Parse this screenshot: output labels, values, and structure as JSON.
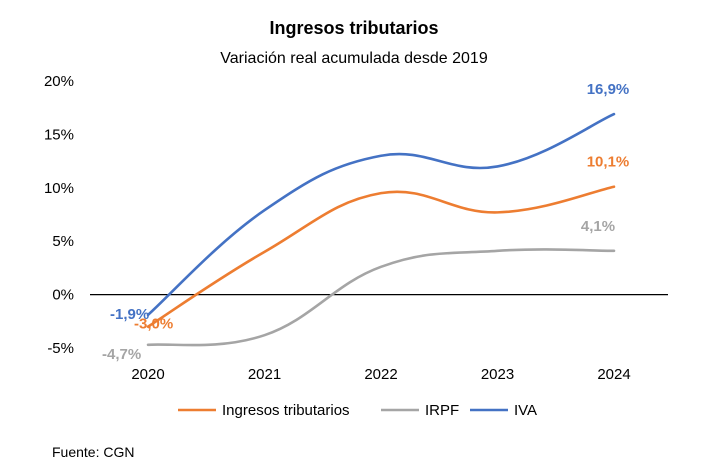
{
  "chart_data": {
    "type": "line",
    "title": "Ingresos tributarios",
    "subtitle": "Variación real acumulada desde 2019",
    "categories": [
      "2020",
      "2021",
      "2022",
      "2023",
      "2024"
    ],
    "y_ticks": [
      "20%",
      "15%",
      "10%",
      "5%",
      "0%",
      "-5%"
    ],
    "ylim": [
      -5,
      20
    ],
    "grid": false,
    "legend_position": "bottom",
    "series": [
      {
        "name": "Ingresos tributarios",
        "color": "#ED7D31",
        "values": [
          -3.0,
          4.0,
          9.5,
          7.7,
          10.1
        ],
        "labels": {
          "0": "-3,0%",
          "4": "10,1%"
        }
      },
      {
        "name": "IRPF",
        "color": "#A5A5A5",
        "values": [
          -4.7,
          -3.8,
          2.6,
          4.1,
          4.1
        ],
        "labels": {
          "0": "-4,7%",
          "4": "4,1%"
        }
      },
      {
        "name": "IVA",
        "color": "#4472C4",
        "values": [
          -1.9,
          7.9,
          13.0,
          12.0,
          16.9
        ],
        "labels": {
          "0": "-1,9%",
          "4": "16,9%"
        }
      }
    ]
  },
  "source": "Fuente: CGN"
}
